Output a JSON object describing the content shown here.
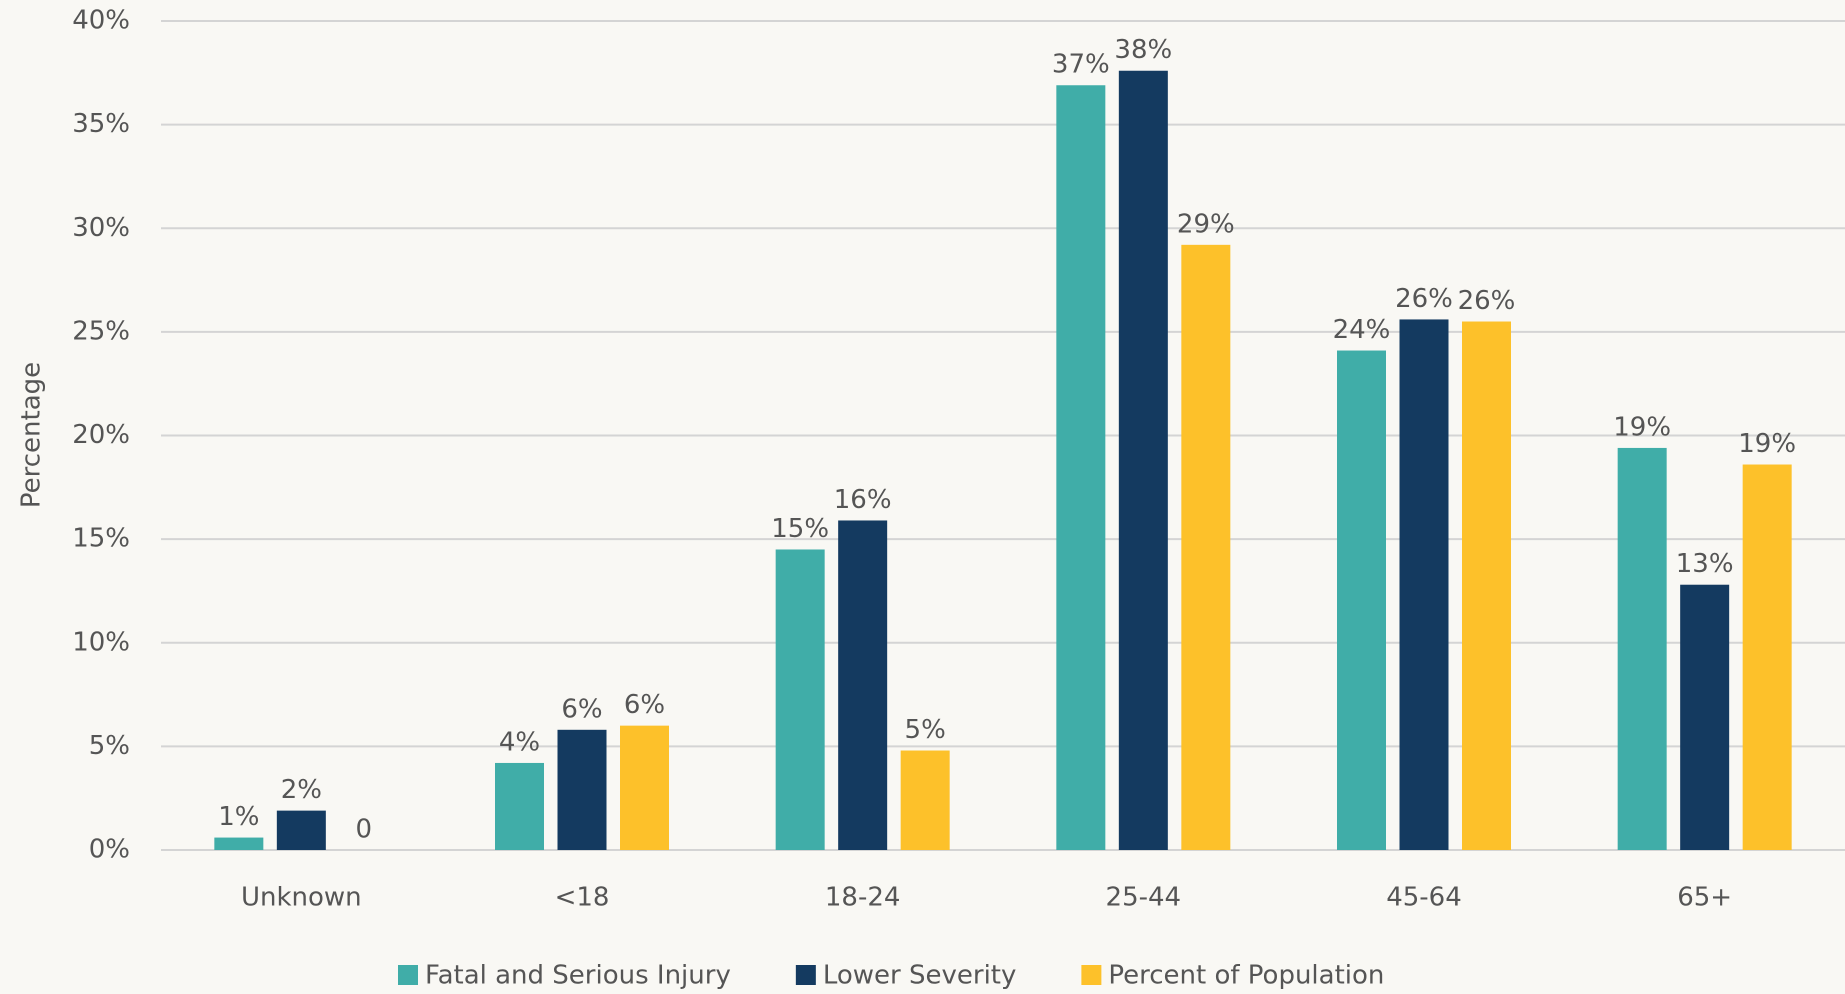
{
  "chart_data": {
    "type": "bar",
    "y_label": "Percentage",
    "categories": [
      "Unknown",
      "<18",
      "18-24",
      "25-44",
      "45-64",
      "65+"
    ],
    "series": [
      {
        "name": "Fatal and Serious Injury",
        "color": "#40ada8",
        "values": [
          0.6,
          4.2,
          14.5,
          36.9,
          24.1,
          19.4
        ],
        "value_labels": [
          "1%",
          "4%",
          "15%",
          "37%",
          "24%",
          "19%"
        ]
      },
      {
        "name": "Lower Severity",
        "color": "#143a60",
        "values": [
          1.9,
          5.8,
          15.9,
          37.6,
          25.6,
          12.8
        ],
        "value_labels": [
          "2%",
          "6%",
          "16%",
          "38%",
          "26%",
          "13%"
        ]
      },
      {
        "name": "Percent of Population",
        "color": "#fdc12a",
        "values": [
          0,
          6.0,
          4.8,
          29.2,
          25.5,
          18.6
        ],
        "value_labels": [
          "0",
          "6%",
          "5%",
          "29%",
          "26%",
          "19%"
        ]
      }
    ],
    "ylim": [
      0,
      40
    ],
    "yticks": [
      {
        "value": 0,
        "label": "0%"
      },
      {
        "value": 5,
        "label": "5%"
      },
      {
        "value": 10,
        "label": "10%"
      },
      {
        "value": 15,
        "label": "15%"
      },
      {
        "value": 20,
        "label": "20%"
      },
      {
        "value": 25,
        "label": "25%"
      },
      {
        "value": 30,
        "label": "30%"
      },
      {
        "value": 35,
        "label": "35%"
      },
      {
        "value": 40,
        "label": "40%"
      }
    ],
    "grid": true,
    "legend": "bottom"
  }
}
